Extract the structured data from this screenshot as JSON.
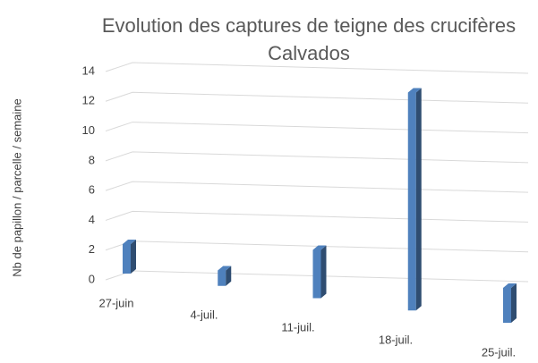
{
  "chart_data": {
    "type": "bar3d",
    "title_lines": [
      "Evolution des captures de teigne des crucifères",
      "Calvados"
    ],
    "y_label": "Nb de papillon / parcelle / semaine",
    "categories": [
      "27-juin",
      "4-juil.",
      "11-juil.",
      "18-juil.",
      "25-juil."
    ],
    "values": [
      2,
      1,
      3,
      13,
      2
    ],
    "color": "#4f81bd",
    "ylim": [
      0,
      14
    ],
    "yticks": [
      0,
      2,
      4,
      6,
      8,
      10,
      12,
      14
    ],
    "grid": true
  }
}
